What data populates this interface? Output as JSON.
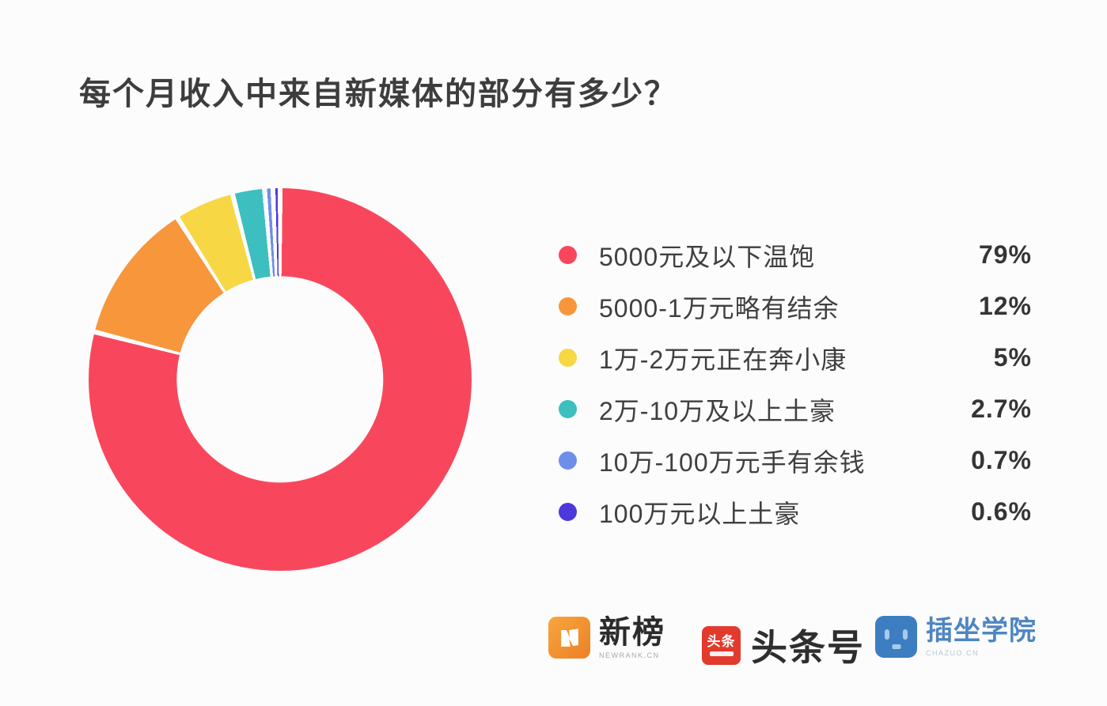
{
  "page": {
    "background": "#FCFCFC"
  },
  "title": "每个月收入中来自新媒体的部分有多少？",
  "chart_data": {
    "type": "pie",
    "subtype": "donut",
    "title": "每个月收入中来自新媒体的部分有多少？",
    "unit": "%",
    "start_angle_deg": 0,
    "direction": "clockwise",
    "hole_ratio": 0.54,
    "segment_gap_deg": 1.5,
    "legend_position": "right",
    "items": [
      {
        "label": "5000元及以下温饱",
        "value": 79,
        "display": "79%",
        "color": "#F8475C"
      },
      {
        "label": "5000-1万元略有结余",
        "value": 12,
        "display": "12%",
        "color": "#F8963C"
      },
      {
        "label": "1万-2万元正在奔小康",
        "value": 5,
        "display": "5%",
        "color": "#F7D744"
      },
      {
        "label": "2万-10万及以上土豪",
        "value": 2.7,
        "display": "2.7%",
        "color": "#3DBFC0"
      },
      {
        "label": "10万-100万元手有余钱",
        "value": 0.7,
        "display": "0.7%",
        "color": "#6E8EEA"
      },
      {
        "label": "100万元以上土豪",
        "value": 0.6,
        "display": "0.6%",
        "color": "#4C38DC"
      }
    ]
  },
  "footer": {
    "logos": [
      {
        "name": "newrank",
        "brand_color": "#F0912F",
        "text": "新榜",
        "subtext": "NEWRANK.CN",
        "icon_glyph": "N"
      },
      {
        "name": "toutiao",
        "brand_color": "#E23B2E",
        "text": "头条号",
        "icon_text": "头条"
      },
      {
        "name": "chazuo",
        "brand_color": "#3C7EC1",
        "text": "插坐学院",
        "subtext": "CHAZUO.CN"
      }
    ]
  }
}
